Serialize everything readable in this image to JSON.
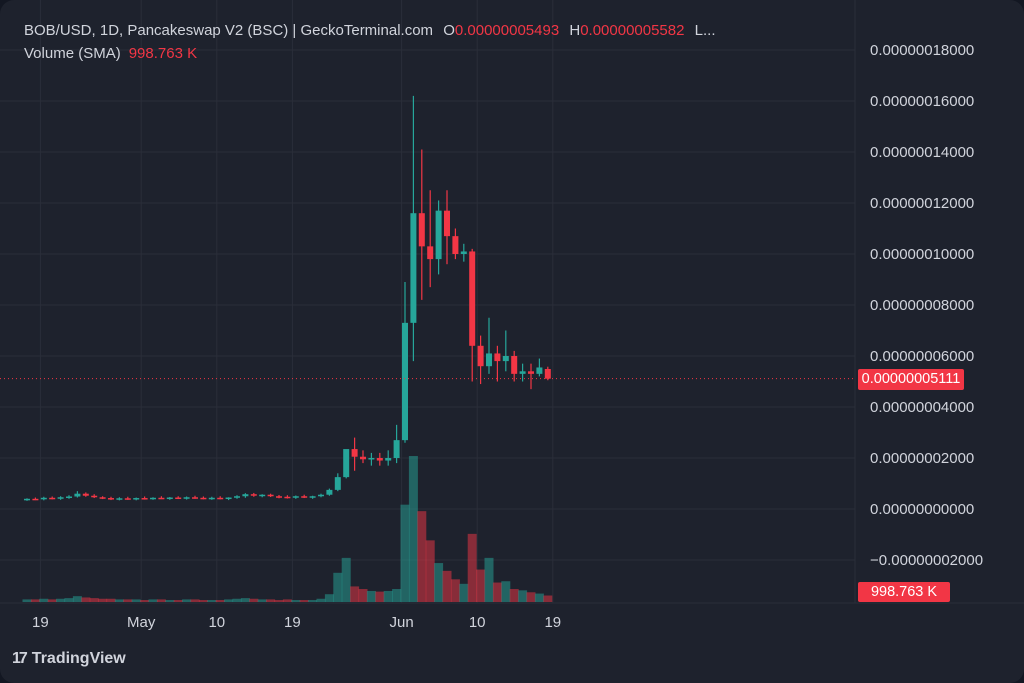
{
  "header": {
    "symbol": "BOB/USD, 1D, Pancakeswap V2 (BSC) | GeckoTerminal.com",
    "open_label": "O",
    "open_value": "0.00000005493",
    "high_label": "H",
    "high_value": "0.00000005582",
    "more": "L..."
  },
  "volume_legend": {
    "label": "Volume (SMA)",
    "value": "998.763 K"
  },
  "last_price_tag": "0.00000005111",
  "volume_tag": "998.763 K",
  "brand": {
    "logo": "17",
    "name": "TradingView"
  },
  "colors": {
    "up": "#26a69a",
    "down": "#f23645",
    "background": "#1e222d",
    "grid": "#2a2e39",
    "text": "#d1d4dc"
  },
  "chart_data": {
    "type": "candlestick",
    "price_axis_ticks": [
      "0.00000018000",
      "0.00000016000",
      "0.00000014000",
      "0.00000012000",
      "0.00000010000",
      "0.00000008000",
      "0.00000006000",
      "0.00000004000",
      "0.00000002000",
      "0.00000000000",
      "−0.00000002000"
    ],
    "price_axis_values": [
      1.8e-07,
      1.6e-07,
      1.4e-07,
      1.2e-07,
      1e-07,
      8e-08,
      6e-08,
      4e-08,
      2e-08,
      0,
      -2e-08
    ],
    "time_axis_ticks": [
      {
        "label": "19",
        "index": 1
      },
      {
        "label": "May",
        "index": 13
      },
      {
        "label": "10",
        "index": 22
      },
      {
        "label": "19",
        "index": 31
      },
      {
        "label": "Jun",
        "index": 44
      },
      {
        "label": "10",
        "index": 53
      },
      {
        "label": "19",
        "index": 62
      }
    ],
    "last_price": 5.111e-08,
    "candles_units": "price in USD; volume in relative units",
    "candles": [
      {
        "o": 3.5e-09,
        "h": 4.2e-09,
        "l": 3.2e-09,
        "c": 4e-09,
        "v": 0.4
      },
      {
        "o": 4e-09,
        "h": 4.5e-09,
        "l": 3.5e-09,
        "c": 3.8e-09,
        "v": 0.4
      },
      {
        "o": 3.8e-09,
        "h": 4.8e-09,
        "l": 3.4e-09,
        "c": 4.4e-09,
        "v": 0.5
      },
      {
        "o": 4.4e-09,
        "h": 4.9e-09,
        "l": 3.8e-09,
        "c": 4.1e-09,
        "v": 0.4
      },
      {
        "o": 4.1e-09,
        "h": 5e-09,
        "l": 3.6e-09,
        "c": 4.6e-09,
        "v": 0.5
      },
      {
        "o": 4.6e-09,
        "h": 5.4e-09,
        "l": 4e-09,
        "c": 4.9e-09,
        "v": 0.6
      },
      {
        "o": 4.9e-09,
        "h": 7e-09,
        "l": 4.5e-09,
        "c": 6e-09,
        "v": 0.9
      },
      {
        "o": 6e-09,
        "h": 6.5e-09,
        "l": 4.8e-09,
        "c": 5.2e-09,
        "v": 0.7
      },
      {
        "o": 5.2e-09,
        "h": 5.8e-09,
        "l": 4.3e-09,
        "c": 4.6e-09,
        "v": 0.6
      },
      {
        "o": 4.6e-09,
        "h": 5e-09,
        "l": 3.9e-09,
        "c": 4.3e-09,
        "v": 0.5
      },
      {
        "o": 4.3e-09,
        "h": 4.8e-09,
        "l": 3.5e-09,
        "c": 3.8e-09,
        "v": 0.5
      },
      {
        "o": 3.8e-09,
        "h": 4.6e-09,
        "l": 3.4e-09,
        "c": 4.2e-09,
        "v": 0.4
      },
      {
        "o": 4.2e-09,
        "h": 4.8e-09,
        "l": 3.6e-09,
        "c": 4e-09,
        "v": 0.4
      },
      {
        "o": 4e-09,
        "h": 4.5e-09,
        "l": 3.4e-09,
        "c": 4.3e-09,
        "v": 0.4
      },
      {
        "o": 4.3e-09,
        "h": 4.9e-09,
        "l": 3.7e-09,
        "c": 4.1e-09,
        "v": 0.3
      },
      {
        "o": 4.1e-09,
        "h": 4.6e-09,
        "l": 3.6e-09,
        "c": 4.4e-09,
        "v": 0.4
      },
      {
        "o": 4.4e-09,
        "h": 5e-09,
        "l": 3.9e-09,
        "c": 4.2e-09,
        "v": 0.4
      },
      {
        "o": 4.2e-09,
        "h": 4.7e-09,
        "l": 3.6e-09,
        "c": 4.5e-09,
        "v": 0.3
      },
      {
        "o": 4.5e-09,
        "h": 5e-09,
        "l": 3.9e-09,
        "c": 4.3e-09,
        "v": 0.3
      },
      {
        "o": 4.3e-09,
        "h": 4.9e-09,
        "l": 3.7e-09,
        "c": 4.6e-09,
        "v": 0.4
      },
      {
        "o": 4.6e-09,
        "h": 5.2e-09,
        "l": 4e-09,
        "c": 4.4e-09,
        "v": 0.4
      },
      {
        "o": 4.4e-09,
        "h": 4.9e-09,
        "l": 3.8e-09,
        "c": 4.2e-09,
        "v": 0.3
      },
      {
        "o": 4.2e-09,
        "h": 4.8e-09,
        "l": 3.6e-09,
        "c": 4.4e-09,
        "v": 0.3
      },
      {
        "o": 4.4e-09,
        "h": 5e-09,
        "l": 3.8e-09,
        "c": 4e-09,
        "v": 0.3
      },
      {
        "o": 4e-09,
        "h": 4.6e-09,
        "l": 3.5e-09,
        "c": 4.5e-09,
        "v": 0.4
      },
      {
        "o": 4.5e-09,
        "h": 5.4e-09,
        "l": 4e-09,
        "c": 5e-09,
        "v": 0.5
      },
      {
        "o": 5e-09,
        "h": 6.2e-09,
        "l": 4.4e-09,
        "c": 5.8e-09,
        "v": 0.6
      },
      {
        "o": 5.8e-09,
        "h": 6.3e-09,
        "l": 4.8e-09,
        "c": 5.3e-09,
        "v": 0.5
      },
      {
        "o": 5.3e-09,
        "h": 5.8e-09,
        "l": 4.6e-09,
        "c": 5.6e-09,
        "v": 0.4
      },
      {
        "o": 5.6e-09,
        "h": 6e-09,
        "l": 4.7e-09,
        "c": 5e-09,
        "v": 0.4
      },
      {
        "o": 5e-09,
        "h": 5.5e-09,
        "l": 4.2e-09,
        "c": 4.8e-09,
        "v": 0.3
      },
      {
        "o": 4.8e-09,
        "h": 5.4e-09,
        "l": 4.1e-09,
        "c": 4.6e-09,
        "v": 0.4
      },
      {
        "o": 4.6e-09,
        "h": 5.3e-09,
        "l": 4e-09,
        "c": 5e-09,
        "v": 0.3
      },
      {
        "o": 5e-09,
        "h": 5.6e-09,
        "l": 4.3e-09,
        "c": 4.7e-09,
        "v": 0.3
      },
      {
        "o": 4.7e-09,
        "h": 5.2e-09,
        "l": 4e-09,
        "c": 5e-09,
        "v": 0.3
      },
      {
        "o": 5e-09,
        "h": 6e-09,
        "l": 4.6e-09,
        "c": 5.6e-09,
        "v": 0.5
      },
      {
        "o": 5.6e-09,
        "h": 8e-09,
        "l": 5.2e-09,
        "c": 7.5e-09,
        "v": 1.2
      },
      {
        "o": 7.5e-09,
        "h": 1.4e-08,
        "l": 7e-09,
        "c": 1.25e-08,
        "v": 4.5
      },
      {
        "o": 1.25e-08,
        "h": 2.2e-08,
        "l": 1.2e-08,
        "c": 2.35e-08,
        "v": 6.8
      },
      {
        "o": 2.35e-08,
        "h": 2.8e-08,
        "l": 1.5e-08,
        "c": 2.05e-08,
        "v": 2.4
      },
      {
        "o": 2.05e-08,
        "h": 2.3e-08,
        "l": 1.8e-08,
        "c": 1.95e-08,
        "v": 2.0
      },
      {
        "o": 1.95e-08,
        "h": 2.2e-08,
        "l": 1.7e-08,
        "c": 2e-08,
        "v": 1.7
      },
      {
        "o": 2e-08,
        "h": 2.2e-08,
        "l": 1.7e-08,
        "c": 1.9e-08,
        "v": 1.6
      },
      {
        "o": 1.9e-08,
        "h": 2.3e-08,
        "l": 1.7e-08,
        "c": 2e-08,
        "v": 1.7
      },
      {
        "o": 2e-08,
        "h": 3.3e-08,
        "l": 1.8e-08,
        "c": 2.7e-08,
        "v": 2.0
      },
      {
        "o": 2.7e-08,
        "h": 8.9e-08,
        "l": 2.6e-08,
        "c": 7.3e-08,
        "v": 15.0
      },
      {
        "o": 7.3e-08,
        "h": 1.62e-07,
        "l": 5.8e-08,
        "c": 1.16e-07,
        "v": 22.5
      },
      {
        "o": 1.16e-07,
        "h": 1.41e-07,
        "l": 8.2e-08,
        "c": 1.03e-07,
        "v": 14.0
      },
      {
        "o": 1.03e-07,
        "h": 1.25e-07,
        "l": 8.7e-08,
        "c": 9.8e-08,
        "v": 9.5
      },
      {
        "o": 9.8e-08,
        "h": 1.21e-07,
        "l": 9.2e-08,
        "c": 1.17e-07,
        "v": 6.0
      },
      {
        "o": 1.17e-07,
        "h": 1.25e-07,
        "l": 9.6e-08,
        "c": 1.07e-07,
        "v": 4.8
      },
      {
        "o": 1.07e-07,
        "h": 1.1e-07,
        "l": 9.8e-08,
        "c": 1e-07,
        "v": 3.5
      },
      {
        "o": 1e-07,
        "h": 1.04e-07,
        "l": 9.7e-08,
        "c": 1.01e-07,
        "v": 2.8
      },
      {
        "o": 1.01e-07,
        "h": 1.02e-07,
        "l": 5e-08,
        "c": 6.4e-08,
        "v": 10.5
      },
      {
        "o": 6.4e-08,
        "h": 6.8e-08,
        "l": 4.9e-08,
        "c": 5.6e-08,
        "v": 5.0
      },
      {
        "o": 5.6e-08,
        "h": 7.5e-08,
        "l": 5.3e-08,
        "c": 6.1e-08,
        "v": 6.8
      },
      {
        "o": 6.1e-08,
        "h": 6.4e-08,
        "l": 5e-08,
        "c": 5.8e-08,
        "v": 3.0
      },
      {
        "o": 5.8e-08,
        "h": 7e-08,
        "l": 5.4e-08,
        "c": 6e-08,
        "v": 3.2
      },
      {
        "o": 6e-08,
        "h": 6.2e-08,
        "l": 5e-08,
        "c": 5.3e-08,
        "v": 2.0
      },
      {
        "o": 5.3e-08,
        "h": 5.7e-08,
        "l": 5e-08,
        "c": 5.4e-08,
        "v": 1.8
      },
      {
        "o": 5.4e-08,
        "h": 5.7e-08,
        "l": 4.7e-08,
        "c": 5.3e-08,
        "v": 1.5
      },
      {
        "o": 5.3e-08,
        "h": 5.9e-08,
        "l": 5.2e-08,
        "c": 5.55e-08,
        "v": 1.3
      },
      {
        "o": 5.49e-08,
        "h": 5.58e-08,
        "l": 5.05e-08,
        "c": 5.111e-08,
        "v": 1.0
      }
    ]
  }
}
